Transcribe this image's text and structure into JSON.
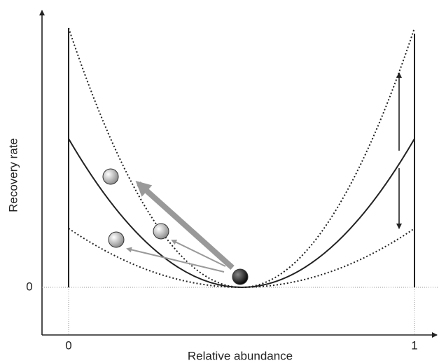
{
  "y_axis": {
    "title": "Recovery rate",
    "tick": "0"
  },
  "x_axis": {
    "title": "Relative abundance",
    "ticks": [
      "0",
      "1"
    ]
  }
}
